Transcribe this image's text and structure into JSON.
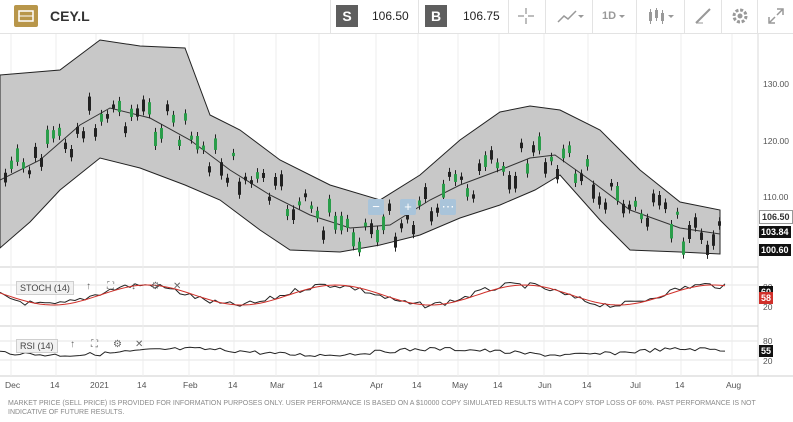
{
  "header": {
    "symbol": "CEY.L",
    "sell_label": "S",
    "sell_price": "106.50",
    "buy_label": "B",
    "buy_price": "106.75",
    "timeframe": "1D",
    "sell_color": "#5e5e5e",
    "buy_color": "#5e5e5e",
    "icons": [
      "crosshair-icon",
      "line-chart-icon",
      "candlestick-icon",
      "draw-icon",
      "gear-icon",
      "expand-icon"
    ]
  },
  "price_axis": {
    "ticks": [
      "130.00",
      "120.00",
      "110.00"
    ],
    "last_tag": "106.50",
    "ma_tag": "103.84",
    "low_tag": "100.60"
  },
  "stoch": {
    "label": "STOCH (14)",
    "ticks": [
      "80",
      "20"
    ],
    "tag_k": "60",
    "tag_d": "58"
  },
  "rsi": {
    "label": "RSI (14)",
    "ticks": [
      "80",
      "20"
    ],
    "tag": "55"
  },
  "x_labels": [
    "Dec",
    "14",
    "2021",
    "14",
    "Feb",
    "14",
    "Mar",
    "14",
    "Apr",
    "14",
    "May",
    "14",
    "Jun",
    "14",
    "Jul",
    "14",
    "Aug"
  ],
  "disclaimer": "MARKET PRICE (SELL PRICE) IS PROVIDED FOR INFORMATION PURPOSES ONLY. USER PERFORMANCE IS BASED ON A $10000 COPY SIMULATED RESULTS WITH A COPY STOP LOSS OF 60%. PAST PERFORMANCE IS NOT INDICATIVE OF FUTURE RESULTS."
}
